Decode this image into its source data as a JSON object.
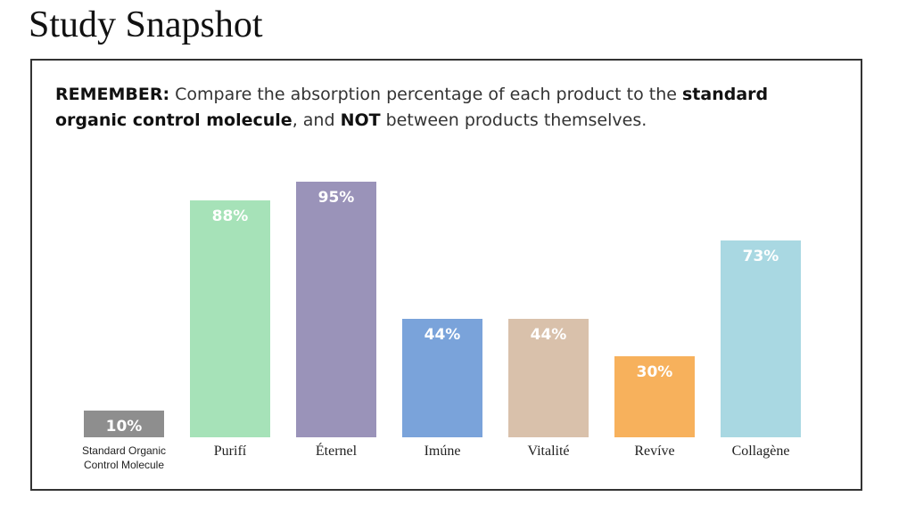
{
  "header": {
    "title": "Study Snapshot"
  },
  "note": {
    "segments": [
      {
        "text": "REMEMBER:",
        "bold": true
      },
      {
        "text": " Compare the absorption percentage of each product to the ",
        "bold": false
      },
      {
        "text": "standard organic control molecule",
        "bold": true
      },
      {
        "text": ", and ",
        "bold": false
      },
      {
        "text": "NOT",
        "bold": true
      },
      {
        "text": " between products themselves.",
        "bold": false
      }
    ]
  },
  "chart_data": {
    "type": "bar",
    "categories": [
      "Standard Organic Control Molecule",
      "Purifí",
      "Éternel",
      "Imúne",
      "Vitalité",
      "Revíve",
      "Collagène"
    ],
    "values": [
      10,
      88,
      95,
      44,
      44,
      30,
      73
    ],
    "value_labels": [
      "10%",
      "88%",
      "95%",
      "44%",
      "44%",
      "30%",
      "73%"
    ],
    "colors": [
      "#8e8e8e",
      "#a6e2b8",
      "#9a93b9",
      "#7aa3da",
      "#d9c1ab",
      "#f7b15c",
      "#a9d8e2"
    ]
  }
}
